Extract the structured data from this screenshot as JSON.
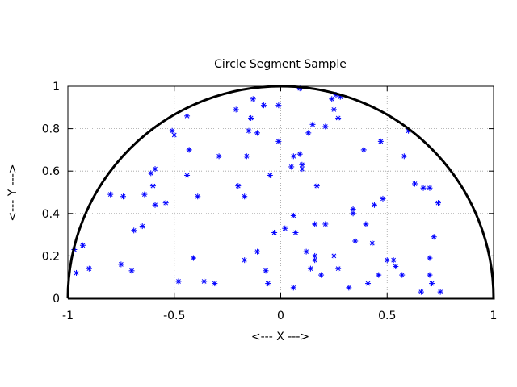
{
  "chart_data": {
    "type": "scatter",
    "title": "Circle Segment Sample",
    "xlabel": "<--- X --->",
    "ylabel": "<--- Y --->",
    "xlim": [
      -1,
      1
    ],
    "ylim": [
      0,
      1
    ],
    "xticks": [
      "-1",
      "-0.5",
      "0",
      "0.5",
      "1"
    ],
    "yticks": [
      "0",
      "0.2",
      "0.4",
      "0.6",
      "0.8",
      "1"
    ],
    "xtick_values": [
      -1,
      -0.5,
      0,
      0.5,
      1
    ],
    "ytick_values": [
      0,
      0.2,
      0.4,
      0.6,
      0.8,
      1
    ],
    "grid": true,
    "marker_color": "#0000ff",
    "outline": "semicircle x^2 + y^2 = 1, y >= 0",
    "points": [
      [
        -0.97,
        0.23
      ],
      [
        -0.96,
        0.12
      ],
      [
        -0.93,
        0.25
      ],
      [
        -0.9,
        0.14
      ],
      [
        -0.8,
        0.49
      ],
      [
        -0.75,
        0.16
      ],
      [
        -0.74,
        0.48
      ],
      [
        -0.7,
        0.13
      ],
      [
        -0.69,
        0.32
      ],
      [
        -0.65,
        0.34
      ],
      [
        -0.64,
        0.49
      ],
      [
        -0.61,
        0.59
      ],
      [
        -0.6,
        0.53
      ],
      [
        -0.59,
        0.44
      ],
      [
        -0.59,
        0.61
      ],
      [
        -0.54,
        0.45
      ],
      [
        -0.51,
        0.79
      ],
      [
        -0.5,
        0.77
      ],
      [
        -0.48,
        0.08
      ],
      [
        -0.44,
        0.86
      ],
      [
        -0.44,
        0.58
      ],
      [
        -0.43,
        0.7
      ],
      [
        -0.41,
        0.19
      ],
      [
        -0.39,
        0.48
      ],
      [
        -0.36,
        0.08
      ],
      [
        -0.31,
        0.07
      ],
      [
        -0.29,
        0.67
      ],
      [
        -0.21,
        0.89
      ],
      [
        -0.2,
        0.53
      ],
      [
        -0.17,
        0.48
      ],
      [
        -0.17,
        0.18
      ],
      [
        -0.16,
        0.67
      ],
      [
        -0.15,
        0.79
      ],
      [
        -0.14,
        0.85
      ],
      [
        -0.13,
        0.94
      ],
      [
        -0.11,
        0.78
      ],
      [
        -0.11,
        0.22
      ],
      [
        -0.08,
        0.91
      ],
      [
        -0.07,
        0.13
      ],
      [
        -0.06,
        0.07
      ],
      [
        -0.05,
        0.58
      ],
      [
        -0.03,
        0.31
      ],
      [
        -0.01,
        0.74
      ],
      [
        -0.01,
        0.91
      ],
      [
        0.02,
        0.33
      ],
      [
        0.05,
        0.62
      ],
      [
        0.06,
        0.39
      ],
      [
        0.06,
        0.67
      ],
      [
        0.06,
        0.05
      ],
      [
        0.07,
        0.31
      ],
      [
        0.09,
        0.99
      ],
      [
        0.09,
        0.68
      ],
      [
        0.1,
        0.63
      ],
      [
        0.1,
        0.61
      ],
      [
        0.12,
        0.22
      ],
      [
        0.13,
        0.78
      ],
      [
        0.14,
        0.14
      ],
      [
        0.15,
        0.82
      ],
      [
        0.16,
        0.35
      ],
      [
        0.16,
        0.2
      ],
      [
        0.16,
        0.18
      ],
      [
        0.17,
        0.53
      ],
      [
        0.19,
        0.11
      ],
      [
        0.21,
        0.81
      ],
      [
        0.21,
        0.35
      ],
      [
        0.24,
        0.94
      ],
      [
        0.25,
        0.89
      ],
      [
        0.25,
        0.2
      ],
      [
        0.26,
        0.96
      ],
      [
        0.27,
        0.85
      ],
      [
        0.27,
        0.14
      ],
      [
        0.28,
        0.95
      ],
      [
        0.32,
        0.05
      ],
      [
        0.34,
        0.4
      ],
      [
        0.34,
        0.42
      ],
      [
        0.35,
        0.27
      ],
      [
        0.39,
        0.7
      ],
      [
        0.4,
        0.35
      ],
      [
        0.41,
        0.07
      ],
      [
        0.43,
        0.26
      ],
      [
        0.44,
        0.44
      ],
      [
        0.46,
        0.11
      ],
      [
        0.47,
        0.74
      ],
      [
        0.48,
        0.47
      ],
      [
        0.5,
        0.18
      ],
      [
        0.53,
        0.18
      ],
      [
        0.54,
        0.15
      ],
      [
        0.57,
        0.11
      ],
      [
        0.58,
        0.67
      ],
      [
        0.6,
        0.79
      ],
      [
        0.63,
        0.54
      ],
      [
        0.66,
        0.03
      ],
      [
        0.67,
        0.52
      ],
      [
        0.7,
        0.52
      ],
      [
        0.7,
        0.19
      ],
      [
        0.7,
        0.11
      ],
      [
        0.71,
        0.07
      ],
      [
        0.72,
        0.29
      ],
      [
        0.74,
        0.45
      ],
      [
        0.75,
        0.03
      ]
    ]
  }
}
